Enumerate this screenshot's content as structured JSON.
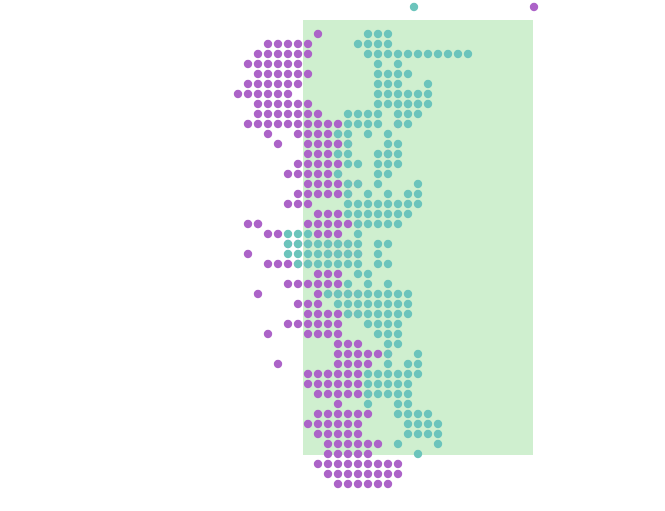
{
  "chart_data": {
    "type": "scatter",
    "title": "",
    "xlabel": "",
    "ylabel": "",
    "grid": false,
    "legend": "top-right",
    "highlight_band": {
      "x": [
        0,
        23
      ],
      "color": "#cfefcf"
    },
    "series": [
      {
        "color": "#ac63c8",
        "rows": [
          [
            1,
            1,
            1
          ],
          [
            2,
            -4,
            0
          ],
          [
            3,
            -5,
            0
          ],
          [
            4,
            -6,
            -1
          ],
          [
            5,
            -5,
            0
          ],
          [
            6,
            -6,
            -1
          ],
          [
            7,
            -7,
            -2
          ],
          [
            8,
            -5,
            0
          ],
          [
            9,
            -5,
            1
          ],
          [
            10,
            -6,
            3
          ],
          [
            11,
            -4,
            -4
          ],
          [
            11,
            -1,
            3
          ],
          [
            12,
            0,
            4
          ],
          [
            13,
            0,
            3
          ],
          [
            14,
            -1,
            3
          ],
          [
            15,
            -2,
            3
          ],
          [
            16,
            0,
            5
          ],
          [
            17,
            -1,
            4
          ],
          [
            18,
            -2,
            0
          ],
          [
            19,
            1,
            3
          ],
          [
            20,
            0,
            5
          ],
          [
            20,
            -6,
            -5
          ],
          [
            21,
            -4,
            -3
          ],
          [
            21,
            1,
            3
          ],
          [
            22,
            2,
            4
          ],
          [
            22,
            -2,
            0
          ],
          [
            23,
            2,
            5
          ],
          [
            24,
            -4,
            0
          ],
          [
            25,
            1,
            3
          ],
          [
            26,
            -2,
            3
          ],
          [
            27,
            1,
            5
          ],
          [
            28,
            -1,
            1
          ],
          [
            29,
            0,
            5
          ],
          [
            30,
            -2,
            3
          ],
          [
            31,
            0,
            3
          ],
          [
            32,
            3,
            5
          ],
          [
            33,
            3,
            8
          ],
          [
            34,
            3,
            6
          ],
          [
            35,
            0,
            5
          ],
          [
            36,
            0,
            5
          ],
          [
            37,
            1,
            6
          ],
          [
            38,
            3,
            3
          ],
          [
            39,
            1,
            6
          ],
          [
            40,
            0,
            5
          ],
          [
            41,
            1,
            5
          ],
          [
            42,
            2,
            7
          ],
          [
            43,
            2,
            6
          ],
          [
            44,
            1,
            9
          ],
          [
            45,
            2,
            9
          ],
          [
            46,
            3,
            8
          ]
        ],
        "points": [
          [
            -3,
            12
          ],
          [
            -5,
            20
          ],
          [
            -6,
            23
          ],
          [
            -5,
            27
          ],
          [
            -4,
            31
          ],
          [
            -3,
            34
          ],
          [
            2,
            35
          ],
          [
            3,
            12
          ],
          [
            9,
            10
          ],
          [
            8,
            13
          ]
        ]
      },
      {
        "color": "#6cc4bc",
        "rows": [
          [
            1,
            6,
            8
          ],
          [
            2,
            5,
            8
          ],
          [
            3,
            6,
            16
          ],
          [
            4,
            7,
            7
          ],
          [
            4,
            9,
            9
          ],
          [
            5,
            7,
            10
          ],
          [
            6,
            7,
            9
          ],
          [
            6,
            12,
            12
          ],
          [
            7,
            7,
            12
          ],
          [
            8,
            7,
            12
          ],
          [
            8,
            9,
            11
          ],
          [
            9,
            4,
            5
          ],
          [
            9,
            6,
            7
          ],
          [
            9,
            9,
            11
          ],
          [
            10,
            4,
            5
          ],
          [
            10,
            6,
            7
          ],
          [
            10,
            9,
            10
          ],
          [
            11,
            3,
            4
          ],
          [
            11,
            6,
            6
          ],
          [
            11,
            8,
            8
          ],
          [
            12,
            4,
            4
          ],
          [
            12,
            8,
            9
          ],
          [
            13,
            3,
            4
          ],
          [
            13,
            7,
            9
          ],
          [
            14,
            4,
            5
          ],
          [
            14,
            7,
            9
          ],
          [
            15,
            3,
            3
          ],
          [
            15,
            7,
            8
          ],
          [
            16,
            4,
            5
          ],
          [
            16,
            7,
            7
          ],
          [
            16,
            11,
            11
          ],
          [
            17,
            4,
            4
          ],
          [
            17,
            6,
            6
          ],
          [
            17,
            8,
            8
          ],
          [
            17,
            10,
            11
          ],
          [
            18,
            4,
            11
          ],
          [
            19,
            4,
            10
          ],
          [
            20,
            5,
            9
          ],
          [
            21,
            -2,
            0
          ],
          [
            21,
            5,
            5
          ],
          [
            22,
            -2,
            5
          ],
          [
            22,
            7,
            8
          ],
          [
            23,
            -2,
            5
          ],
          [
            23,
            7,
            7
          ],
          [
            24,
            -1,
            5
          ],
          [
            24,
            7,
            8
          ],
          [
            25,
            5,
            5
          ],
          [
            25,
            6,
            6
          ],
          [
            26,
            4,
            4
          ],
          [
            26,
            6,
            6
          ],
          [
            26,
            8,
            8
          ],
          [
            27,
            2,
            10
          ],
          [
            28,
            3,
            10
          ],
          [
            29,
            4,
            10
          ],
          [
            30,
            6,
            9
          ],
          [
            31,
            7,
            9
          ],
          [
            32,
            8,
            9
          ],
          [
            33,
            8,
            8
          ],
          [
            33,
            11,
            11
          ],
          [
            34,
            8,
            8
          ],
          [
            34,
            10,
            11
          ],
          [
            35,
            6,
            11
          ],
          [
            36,
            6,
            10
          ],
          [
            37,
            6,
            10
          ],
          [
            38,
            6,
            6
          ],
          [
            38,
            9,
            10
          ],
          [
            39,
            9,
            12
          ],
          [
            40,
            10,
            13
          ],
          [
            41,
            10,
            13
          ],
          [
            42,
            9,
            9
          ],
          [
            42,
            13,
            13
          ],
          [
            43,
            11,
            11
          ]
        ],
        "points": []
      }
    ]
  }
}
